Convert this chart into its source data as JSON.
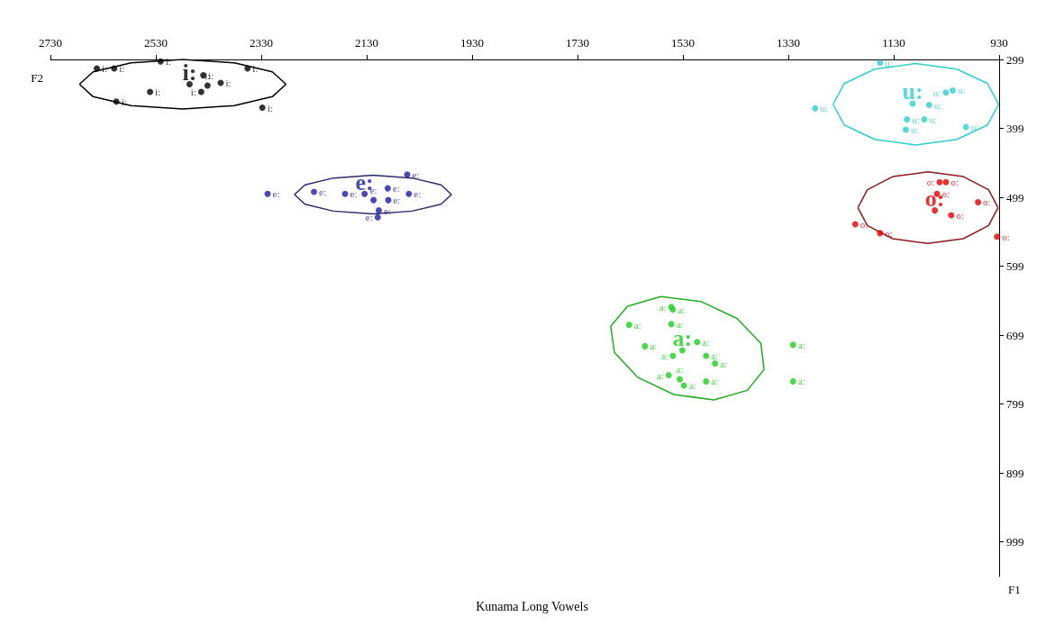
{
  "chart_data": {
    "type": "scatter",
    "title": "Kunama Long Vowels",
    "xlabel": "F2",
    "ylabel": "F1",
    "xlim": [
      2730,
      930
    ],
    "ylim": [
      1049,
      299
    ],
    "xticks": [
      2730,
      2530,
      2330,
      2130,
      1930,
      1730,
      1530,
      1330,
      1130,
      930
    ],
    "yticks": [
      299,
      399,
      499,
      599,
      699,
      799,
      899,
      999
    ],
    "grid": false,
    "legend": false,
    "marker": "circle",
    "series": [
      {
        "name": "i:",
        "color": "#000000",
        "x": [
          2642,
          2609,
          2521,
          2541,
          2605,
          2440,
          2432,
          2444,
          2407,
          2356,
          2328,
          2466
        ],
        "values": [
          312,
          312,
          302,
          346,
          360,
          322,
          337,
          346,
          333,
          312,
          369,
          335
        ]
      },
      {
        "name": "e:",
        "color": "#1c1c9c",
        "x": [
          2318,
          2230,
          2171,
          2053,
          2090,
          2117,
          2089,
          2107,
          2109,
          2050,
          2134
        ],
        "values": [
          494,
          491,
          494,
          466,
          486,
          503,
          503,
          518,
          528,
          494,
          494
        ]
      },
      {
        "name": "u:",
        "color": "#33cccc",
        "x": [
          1156,
          1279,
          1105,
          1107,
          1072,
          1031,
          1018,
          993,
          1063,
          1094
        ],
        "values": [
          304,
          370,
          386,
          401,
          386,
          347,
          344,
          397,
          365,
          363
        ]
      },
      {
        "name": "o:",
        "color": "#dd0000",
        "x": [
          1043,
          1031,
          1048,
          970,
          1021,
          1203,
          1156,
          934,
          1052
        ],
        "values": [
          477,
          477,
          494,
          506,
          525,
          538,
          551,
          556,
          518
        ]
      },
      {
        "name": "a:",
        "color": "#22cc22",
        "x": [
          1552,
          1549,
          1632,
          1552,
          1602,
          1549,
          1531,
          1503,
          1486,
          1469,
          1557,
          1536,
          1528,
          1486,
          1321,
          1321,
          1531
        ],
        "values": [
          658,
          662,
          684,
          683,
          715,
          729,
          null,
          709,
          729,
          740,
          757,
          763,
          772,
          766,
          713,
          766,
          721
        ]
      },
      {
        "type": "line",
        "marker": "none",
        "color": "#000000",
        "x": [
          2675,
          2649,
          2577,
          2479,
          2381,
          2309,
          2283
        ],
        "values": [
          335,
          317,
          304,
          299,
          304,
          317,
          335
        ]
      },
      {
        "type": "line",
        "marker": "none",
        "color": "#000000",
        "x": [
          2675,
          2649,
          2577,
          2479,
          2381,
          2309,
          2283
        ],
        "values": [
          335,
          353,
          366,
          371,
          366,
          353,
          335
        ]
      },
      {
        "type": "line",
        "marker": "none",
        "color": "#2a2a6e",
        "x": [
          2267,
          2247,
          2193,
          2118,
          2044,
          1989,
          1969
        ],
        "values": [
          495,
          481,
          471,
          467,
          471,
          481,
          495
        ]
      },
      {
        "type": "line",
        "marker": "none",
        "color": "#2a2a6e",
        "x": [
          2267,
          2247,
          2193,
          2118,
          2044,
          1989,
          1969
        ],
        "values": [
          495,
          509,
          519,
          523,
          519,
          509,
          495
        ]
      },
      {
        "type": "line",
        "marker": "none",
        "color": "#33cccc",
        "x": [
          1245,
          1224,
          1166,
          1088,
          1010,
          952,
          931
        ],
        "values": [
          364,
          334,
          313,
          305,
          313,
          334,
          364
        ]
      },
      {
        "type": "line",
        "marker": "none",
        "color": "#33cccc",
        "x": [
          1245,
          1224,
          1166,
          1088,
          1010,
          952,
          931
        ],
        "values": [
          364,
          394,
          415,
          423,
          415,
          394,
          364
        ]
      },
      {
        "type": "line",
        "marker": "none",
        "color": "#8b1a1a",
        "x": [
          1198,
          1180,
          1132,
          1065,
          998,
          950,
          932
        ],
        "values": [
          514,
          488,
          469,
          462,
          469,
          488,
          514
        ]
      },
      {
        "type": "line",
        "marker": "none",
        "color": "#8b1a1a",
        "x": [
          1198,
          1180,
          1132,
          1065,
          998,
          950,
          932
        ],
        "values": [
          514,
          540,
          559,
          566,
          559,
          540,
          514
        ]
      },
      {
        "type": "line",
        "marker": "none",
        "color": "#22aa22",
        "x": [
          1667,
          1635,
          1572,
          1496,
          1427,
          1382,
          1376
        ],
        "values": [
          686,
          657,
          643,
          650,
          675,
          711,
          749
        ]
      },
      {
        "type": "line",
        "marker": "none",
        "color": "#22aa22",
        "x": [
          1667,
          1660,
          1616,
          1547,
          1471,
          1408,
          1376
        ],
        "values": [
          686,
          724,
          760,
          785,
          793,
          779,
          749
        ]
      }
    ],
    "annotations": [
      {
        "text": "i:",
        "x": 2466,
        "y": 335
      },
      {
        "text": "e:",
        "x": 2134,
        "y": 494
      },
      {
        "text": "u:",
        "x": 1094,
        "y": 363
      },
      {
        "text": "o:",
        "x": 1052,
        "y": 518
      },
      {
        "text": "a:",
        "x": 1531,
        "y": 721
      }
    ]
  }
}
